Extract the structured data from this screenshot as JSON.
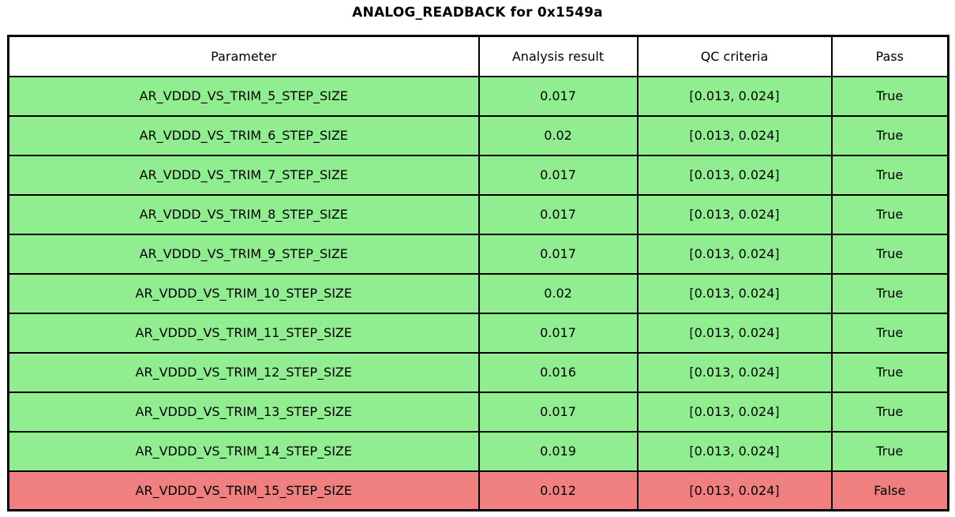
{
  "chart_data": {
    "type": "table",
    "title": "ANALOG_READBACK for 0x1549a",
    "columns": [
      "Parameter",
      "Analysis result",
      "QC criteria",
      "Pass"
    ],
    "rows": [
      {
        "parameter": "AR_VDDD_VS_TRIM_5_STEP_SIZE",
        "result": "0.017",
        "criteria": "[0.013, 0.024]",
        "pass": "True"
      },
      {
        "parameter": "AR_VDDD_VS_TRIM_6_STEP_SIZE",
        "result": "0.02",
        "criteria": "[0.013, 0.024]",
        "pass": "True"
      },
      {
        "parameter": "AR_VDDD_VS_TRIM_7_STEP_SIZE",
        "result": "0.017",
        "criteria": "[0.013, 0.024]",
        "pass": "True"
      },
      {
        "parameter": "AR_VDDD_VS_TRIM_8_STEP_SIZE",
        "result": "0.017",
        "criteria": "[0.013, 0.024]",
        "pass": "True"
      },
      {
        "parameter": "AR_VDDD_VS_TRIM_9_STEP_SIZE",
        "result": "0.017",
        "criteria": "[0.013, 0.024]",
        "pass": "True"
      },
      {
        "parameter": "AR_VDDD_VS_TRIM_10_STEP_SIZE",
        "result": "0.02",
        "criteria": "[0.013, 0.024]",
        "pass": "True"
      },
      {
        "parameter": "AR_VDDD_VS_TRIM_11_STEP_SIZE",
        "result": "0.017",
        "criteria": "[0.013, 0.024]",
        "pass": "True"
      },
      {
        "parameter": "AR_VDDD_VS_TRIM_12_STEP_SIZE",
        "result": "0.016",
        "criteria": "[0.013, 0.024]",
        "pass": "True"
      },
      {
        "parameter": "AR_VDDD_VS_TRIM_13_STEP_SIZE",
        "result": "0.017",
        "criteria": "[0.013, 0.024]",
        "pass": "True"
      },
      {
        "parameter": "AR_VDDD_VS_TRIM_14_STEP_SIZE",
        "result": "0.019",
        "criteria": "[0.013, 0.024]",
        "pass": "True"
      },
      {
        "parameter": "AR_VDDD_VS_TRIM_15_STEP_SIZE",
        "result": "0.012",
        "criteria": "[0.013, 0.024]",
        "pass": "False"
      }
    ],
    "layout_hints": {
      "legend": "none",
      "grid": "cell-borders",
      "pass_rows_highlighted": true
    }
  },
  "colors": {
    "pass_row": "#90ee90",
    "fail_row": "#f08080",
    "border": "#000000",
    "header_bg": "#ffffff",
    "text": "#000000"
  }
}
